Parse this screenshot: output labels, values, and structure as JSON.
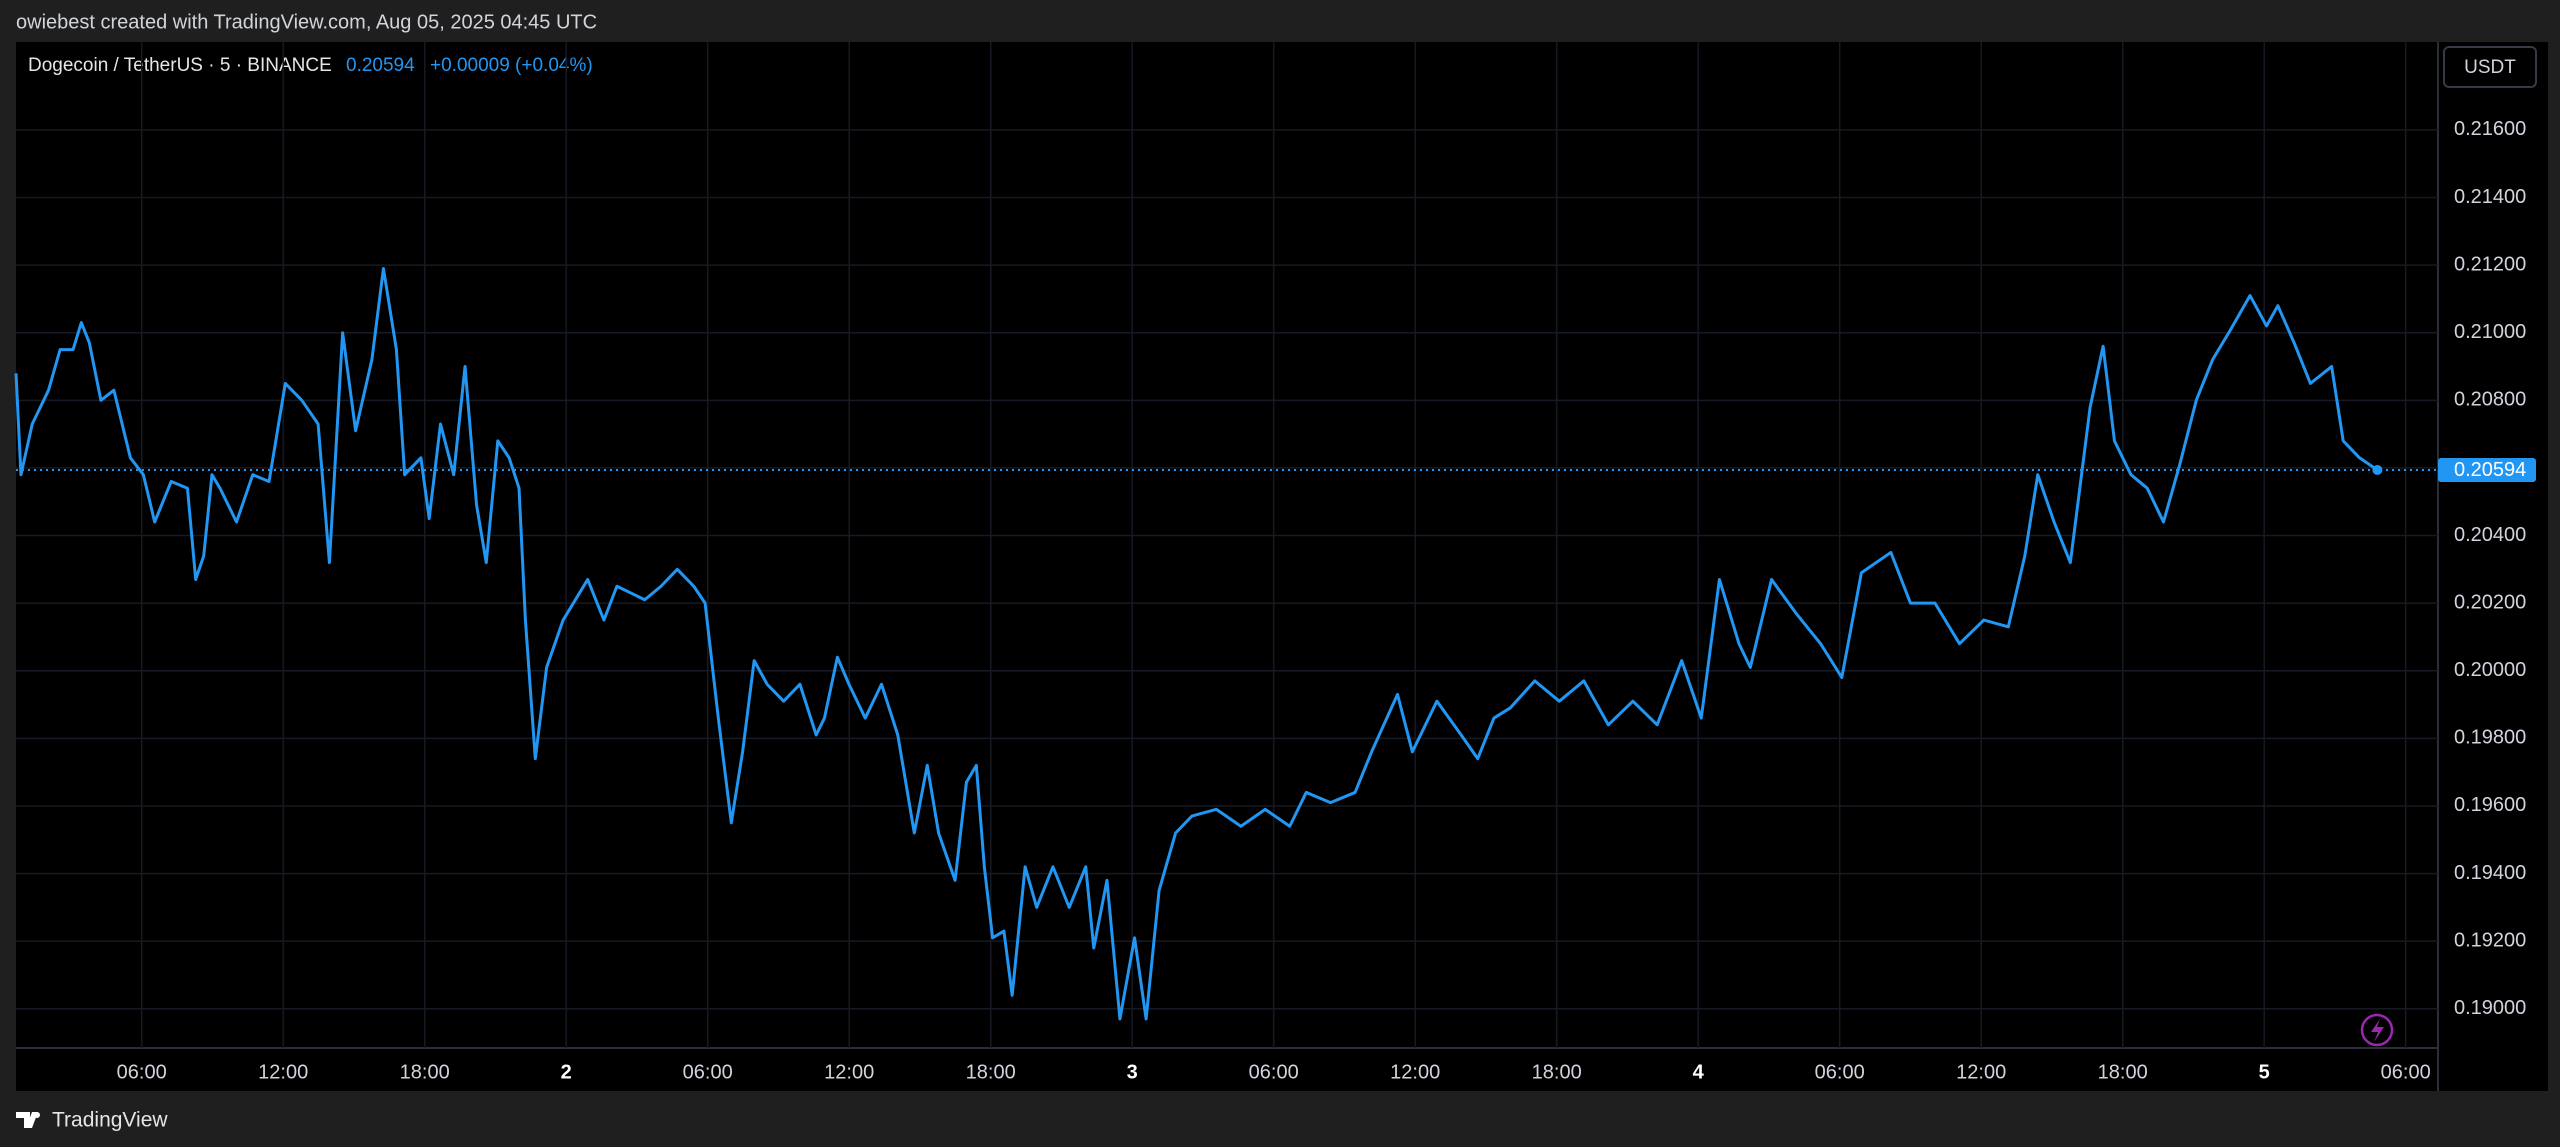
{
  "header": {
    "attribution": "owiebest created with TradingView.com, Aug 05, 2025 04:45 UTC"
  },
  "footer": {
    "brand": "TradingView"
  },
  "chart_data": {
    "type": "line",
    "symbol": "Dogecoin / TetherUS · 5 · BINANCE",
    "last_price": 0.20594,
    "change": "+0.00009 (+0.04%)",
    "currency": "USDT",
    "color": "#2196f3",
    "grid": true,
    "xlim": [
      0.67,
      103.37
    ],
    "ylim": [
      0.18884,
      0.2186
    ],
    "xticks": [
      {
        "value": 6,
        "label": "06:00"
      },
      {
        "value": 12,
        "label": "12:00"
      },
      {
        "value": 18,
        "label": "18:00"
      },
      {
        "value": 24,
        "label": "2"
      },
      {
        "value": 30,
        "label": "06:00"
      },
      {
        "value": 36,
        "label": "12:00"
      },
      {
        "value": 42,
        "label": "18:00"
      },
      {
        "value": 48,
        "label": "3"
      },
      {
        "value": 54,
        "label": "06:00"
      },
      {
        "value": 60,
        "label": "12:00"
      },
      {
        "value": 66,
        "label": "18:00"
      },
      {
        "value": 72,
        "label": "4"
      },
      {
        "value": 78,
        "label": "06:00"
      },
      {
        "value": 84,
        "label": "12:00"
      },
      {
        "value": 90,
        "label": "18:00"
      },
      {
        "value": 96,
        "label": "5"
      },
      {
        "value": 102,
        "label": "06:00"
      }
    ],
    "yticks": [
      {
        "value": 0.19,
        "label": "0.19000"
      },
      {
        "value": 0.192,
        "label": "0.19200"
      },
      {
        "value": 0.194,
        "label": "0.19400"
      },
      {
        "value": 0.196,
        "label": "0.19600"
      },
      {
        "value": 0.198,
        "label": "0.19800"
      },
      {
        "value": 0.2,
        "label": "0.20000"
      },
      {
        "value": 0.202,
        "label": "0.20200"
      },
      {
        "value": 0.204,
        "label": "0.20400"
      },
      {
        "value": 0.206,
        "label": "0.20600"
      },
      {
        "value": 0.208,
        "label": "0.20800"
      },
      {
        "value": 0.21,
        "label": "0.21000"
      },
      {
        "value": 0.212,
        "label": "0.21200"
      },
      {
        "value": 0.214,
        "label": "0.21400"
      },
      {
        "value": 0.216,
        "label": "0.21600"
      }
    ],
    "x": [
      0.67,
      0.88,
      1.36,
      2.05,
      2.54,
      3.09,
      3.44,
      3.78,
      4.27,
      4.82,
      5.17,
      5.52,
      6.07,
      6.55,
      7.25,
      7.94,
      8.29,
      8.63,
      8.98,
      9.32,
      10.02,
      10.71,
      11.4,
      12.09,
      12.79,
      13.48,
      13.96,
      14.52,
      15.07,
      15.76,
      16.25,
      16.8,
      17.15,
      17.84,
      18.19,
      18.67,
      19.23,
      19.71,
      20.2,
      20.61,
      21.1,
      21.58,
      22.0,
      22.27,
      22.69,
      23.17,
      23.87,
      24.91,
      25.6,
      26.15,
      27.33,
      28.02,
      28.71,
      29.41,
      29.89,
      30.45,
      31.0,
      31.48,
      31.97,
      32.52,
      33.22,
      33.91,
      34.6,
      34.95,
      35.5,
      35.99,
      36.68,
      37.37,
      38.06,
      38.76,
      39.31,
      39.79,
      40.49,
      40.97,
      41.39,
      41.73,
      42.08,
      42.56,
      42.91,
      43.46,
      43.95,
      44.64,
      45.33,
      46.03,
      46.37,
      46.93,
      47.48,
      48.1,
      48.59,
      49.14,
      49.84,
      50.53,
      51.57,
      52.61,
      53.64,
      54.68,
      55.38,
      56.41,
      57.45,
      58.15,
      59.25,
      59.88,
      60.92,
      61.95,
      62.65,
      63.34,
      64.03,
      65.07,
      66.11,
      67.15,
      68.19,
      69.23,
      70.26,
      71.3,
      72.13,
      72.9,
      73.73,
      74.21,
      75.11,
      76.15,
      77.19,
      78.09,
      78.92,
      80.17,
      81.0,
      82.04,
      83.08,
      84.11,
      85.15,
      85.85,
      86.4,
      87.09,
      87.78,
      88.62,
      89.17,
      89.65,
      90.35,
      91.04,
      91.73,
      92.42,
      93.12,
      93.81,
      94.5,
      95.4,
      96.1,
      96.58,
      97.27,
      97.96,
      98.86,
      99.35,
      100.04,
      100.8
    ],
    "series": [
      {
        "name": "Dogecoin / TetherUS",
        "color": "#2196f3",
        "values": [
          0.2088,
          0.2058,
          0.2073,
          0.2083,
          0.2095,
          0.2095,
          0.2103,
          0.2097,
          0.208,
          0.2083,
          0.2073,
          0.2063,
          0.2058,
          0.2044,
          0.2056,
          0.2054,
          0.2027,
          0.2034,
          0.2058,
          0.2054,
          0.2044,
          0.2058,
          0.2056,
          0.2085,
          0.208,
          0.2073,
          0.2032,
          0.21,
          0.2071,
          0.2092,
          0.2119,
          0.2095,
          0.2058,
          0.2063,
          0.2045,
          0.2073,
          0.2058,
          0.209,
          0.2049,
          0.2032,
          0.2068,
          0.2063,
          0.2054,
          0.2015,
          0.1974,
          0.2001,
          0.2015,
          0.2027,
          0.2015,
          0.2025,
          0.2021,
          0.2025,
          0.203,
          0.2025,
          0.202,
          0.1986,
          0.1955,
          0.1976,
          0.2003,
          0.1996,
          0.1991,
          0.1996,
          0.1981,
          0.1986,
          0.2004,
          0.1996,
          0.1986,
          0.1996,
          0.1981,
          0.1952,
          0.1972,
          0.1952,
          0.1938,
          0.1967,
          0.1972,
          0.1942,
          0.1921,
          0.1923,
          0.1904,
          0.1942,
          0.193,
          0.1942,
          0.193,
          0.1942,
          0.1918,
          0.1938,
          0.1897,
          0.1921,
          0.1897,
          0.1935,
          0.1952,
          0.1957,
          0.1959,
          0.1954,
          0.1959,
          0.1954,
          0.1964,
          0.1961,
          0.1964,
          0.1976,
          0.1993,
          0.1976,
          0.1991,
          0.1981,
          0.1974,
          0.1986,
          0.1989,
          0.1997,
          0.1991,
          0.1997,
          0.1984,
          0.1991,
          0.1984,
          0.2003,
          0.1986,
          0.2027,
          0.2008,
          0.2001,
          0.2027,
          0.2017,
          0.2008,
          0.1998,
          0.2029,
          0.2035,
          0.202,
          0.202,
          0.2008,
          0.2015,
          0.2013,
          0.2034,
          0.2058,
          0.2044,
          0.2032,
          0.2078,
          0.2096,
          0.2068,
          0.2058,
          0.2054,
          0.2044,
          0.2061,
          0.208,
          0.2092,
          0.21,
          0.2111,
          0.2102,
          0.2108,
          0.2097,
          0.2085,
          0.209,
          0.2068,
          0.2063,
          0.20594
        ]
      }
    ]
  }
}
